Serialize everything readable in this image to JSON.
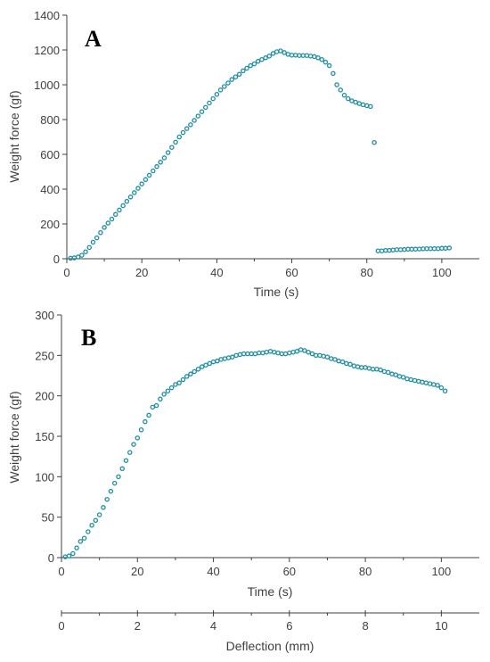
{
  "colors": {
    "marker": "#1f8fa3",
    "axis": "#404040",
    "text": "#404040"
  },
  "chart_data": [
    {
      "type": "scatter",
      "panel_label": "A",
      "xlabel": "Time (s)",
      "ylabel": "Weight force (gf)",
      "xlim": [
        0,
        110
      ],
      "ylim": [
        0,
        1400
      ],
      "xticks": [
        0,
        20,
        40,
        60,
        80,
        100
      ],
      "yticks": [
        0,
        200,
        400,
        600,
        800,
        1000,
        1200,
        1400
      ],
      "grid": false,
      "legend": "none",
      "series": [
        {
          "x": [
            1,
            2,
            3,
            4,
            5,
            6,
            7,
            8,
            9,
            10,
            11,
            12,
            13,
            14,
            15,
            16,
            17,
            18,
            19,
            20,
            21,
            22,
            23,
            24,
            25,
            26,
            27,
            28,
            29,
            30,
            31,
            32,
            33,
            34,
            35,
            36,
            37,
            38,
            39,
            40,
            41,
            42,
            43,
            44,
            45,
            46,
            47,
            48,
            49,
            50,
            51,
            52,
            53,
            54,
            55,
            56,
            57,
            58,
            59,
            60,
            61,
            62,
            63,
            64,
            65,
            66,
            67,
            68,
            69,
            70,
            71,
            72,
            73,
            74,
            75,
            76,
            77,
            78,
            79,
            80,
            81,
            82,
            83,
            84,
            85,
            86,
            87,
            88,
            89,
            90,
            91,
            92,
            93,
            94,
            95,
            96,
            97,
            98,
            99,
            100,
            101,
            102
          ],
          "y": [
            3,
            5,
            10,
            20,
            40,
            65,
            95,
            120,
            150,
            180,
            205,
            228,
            255,
            280,
            305,
            330,
            355,
            380,
            405,
            430,
            455,
            480,
            505,
            530,
            555,
            580,
            610,
            640,
            670,
            700,
            725,
            748,
            770,
            795,
            820,
            845,
            870,
            895,
            920,
            945,
            970,
            990,
            1010,
            1030,
            1045,
            1060,
            1080,
            1095,
            1110,
            1120,
            1135,
            1145,
            1155,
            1165,
            1180,
            1190,
            1195,
            1185,
            1175,
            1170,
            1170,
            1168,
            1168,
            1168,
            1165,
            1162,
            1155,
            1145,
            1130,
            1110,
            1065,
            1000,
            970,
            940,
            920,
            908,
            900,
            892,
            885,
            880,
            875,
            668,
            45,
            45,
            48,
            48,
            50,
            52,
            52,
            53,
            55,
            55,
            55,
            56,
            57,
            58,
            58,
            58,
            58,
            60,
            60,
            62
          ]
        }
      ]
    },
    {
      "type": "scatter",
      "panel_label": "B",
      "xlabel": "Time (s)",
      "ylabel": "Weight force (gf)",
      "xlim": [
        0,
        110
      ],
      "ylim": [
        0,
        300
      ],
      "xticks": [
        0,
        20,
        40,
        60,
        80,
        100
      ],
      "yticks": [
        0,
        50,
        100,
        150,
        200,
        250,
        300
      ],
      "secondary_xlabel": "Deflection (mm)",
      "secondary_xlim": [
        0,
        11
      ],
      "secondary_xticks": [
        0,
        2,
        4,
        6,
        8,
        10
      ],
      "grid": false,
      "legend": "none",
      "series": [
        {
          "x": [
            1,
            2,
            3,
            4,
            5,
            6,
            7,
            8,
            9,
            10,
            11,
            12,
            13,
            14,
            15,
            16,
            17,
            18,
            19,
            20,
            21,
            22,
            23,
            24,
            25,
            26,
            27,
            28,
            29,
            30,
            31,
            32,
            33,
            34,
            35,
            36,
            37,
            38,
            39,
            40,
            41,
            42,
            43,
            44,
            45,
            46,
            47,
            48,
            49,
            50,
            51,
            52,
            53,
            54,
            55,
            56,
            57,
            58,
            59,
            60,
            61,
            62,
            63,
            64,
            65,
            66,
            67,
            68,
            69,
            70,
            71,
            72,
            73,
            74,
            75,
            76,
            77,
            78,
            79,
            80,
            81,
            82,
            83,
            84,
            85,
            86,
            87,
            88,
            89,
            90,
            91,
            92,
            93,
            94,
            95,
            96,
            97,
            98,
            99,
            100,
            101
          ],
          "y": [
            1,
            2,
            5,
            12,
            20,
            24,
            32,
            40,
            46,
            53,
            62,
            72,
            82,
            92,
            100,
            110,
            120,
            130,
            140,
            148,
            158,
            168,
            176,
            186,
            188,
            196,
            202,
            206,
            210,
            214,
            216,
            220,
            224,
            227,
            230,
            233,
            236,
            238,
            240,
            242,
            243,
            245,
            246,
            247,
            248,
            250,
            251,
            252,
            252,
            252,
            252,
            253,
            253,
            254,
            255,
            254,
            253,
            252,
            252,
            253,
            254,
            255,
            257,
            256,
            254,
            252,
            250,
            250,
            249,
            248,
            246,
            245,
            243,
            242,
            240,
            239,
            237,
            236,
            235,
            235,
            234,
            233,
            233,
            232,
            230,
            229,
            227,
            226,
            224,
            223,
            221,
            220,
            219,
            218,
            217,
            216,
            215,
            214,
            213,
            210,
            206
          ]
        }
      ]
    }
  ]
}
